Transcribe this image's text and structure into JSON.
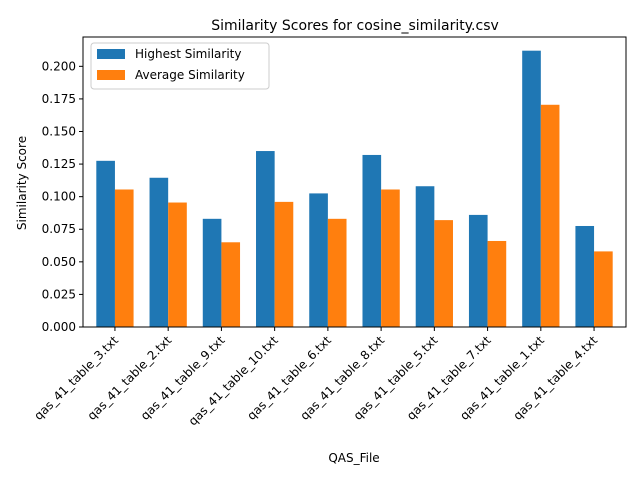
{
  "chart_data": {
    "type": "bar",
    "title": "Similarity Scores for cosine_similarity.csv",
    "xlabel": "QAS_File",
    "ylabel": "Similarity Score",
    "categories": [
      "qas_41_table_3.txt",
      "qas_41_table_2.txt",
      "qas_41_table_9.txt",
      "qas_41_table_10.txt",
      "qas_41_table_6.txt",
      "qas_41_table_8.txt",
      "qas_41_table_5.txt",
      "qas_41_table_7.txt",
      "qas_41_table_1.txt",
      "qas_41_table_4.txt"
    ],
    "series": [
      {
        "name": "Highest Similarity",
        "color": "#1f77b4",
        "values": [
          0.1275,
          0.1145,
          0.083,
          0.135,
          0.1025,
          0.132,
          0.108,
          0.086,
          0.212,
          0.0775
        ]
      },
      {
        "name": "Average Similarity",
        "color": "#ff7f0e",
        "values": [
          0.1055,
          0.0955,
          0.065,
          0.096,
          0.083,
          0.1055,
          0.082,
          0.066,
          0.1705,
          0.058
        ]
      }
    ],
    "ylim": [
      0,
      0.2225
    ],
    "yticks": [
      0.0,
      0.025,
      0.05,
      0.075,
      0.1,
      0.125,
      0.15,
      0.175,
      0.2
    ],
    "ytick_labels": [
      "0.000",
      "0.025",
      "0.050",
      "0.075",
      "0.100",
      "0.125",
      "0.150",
      "0.175",
      "0.200"
    ],
    "grid": false,
    "legend_position": "top-left"
  }
}
